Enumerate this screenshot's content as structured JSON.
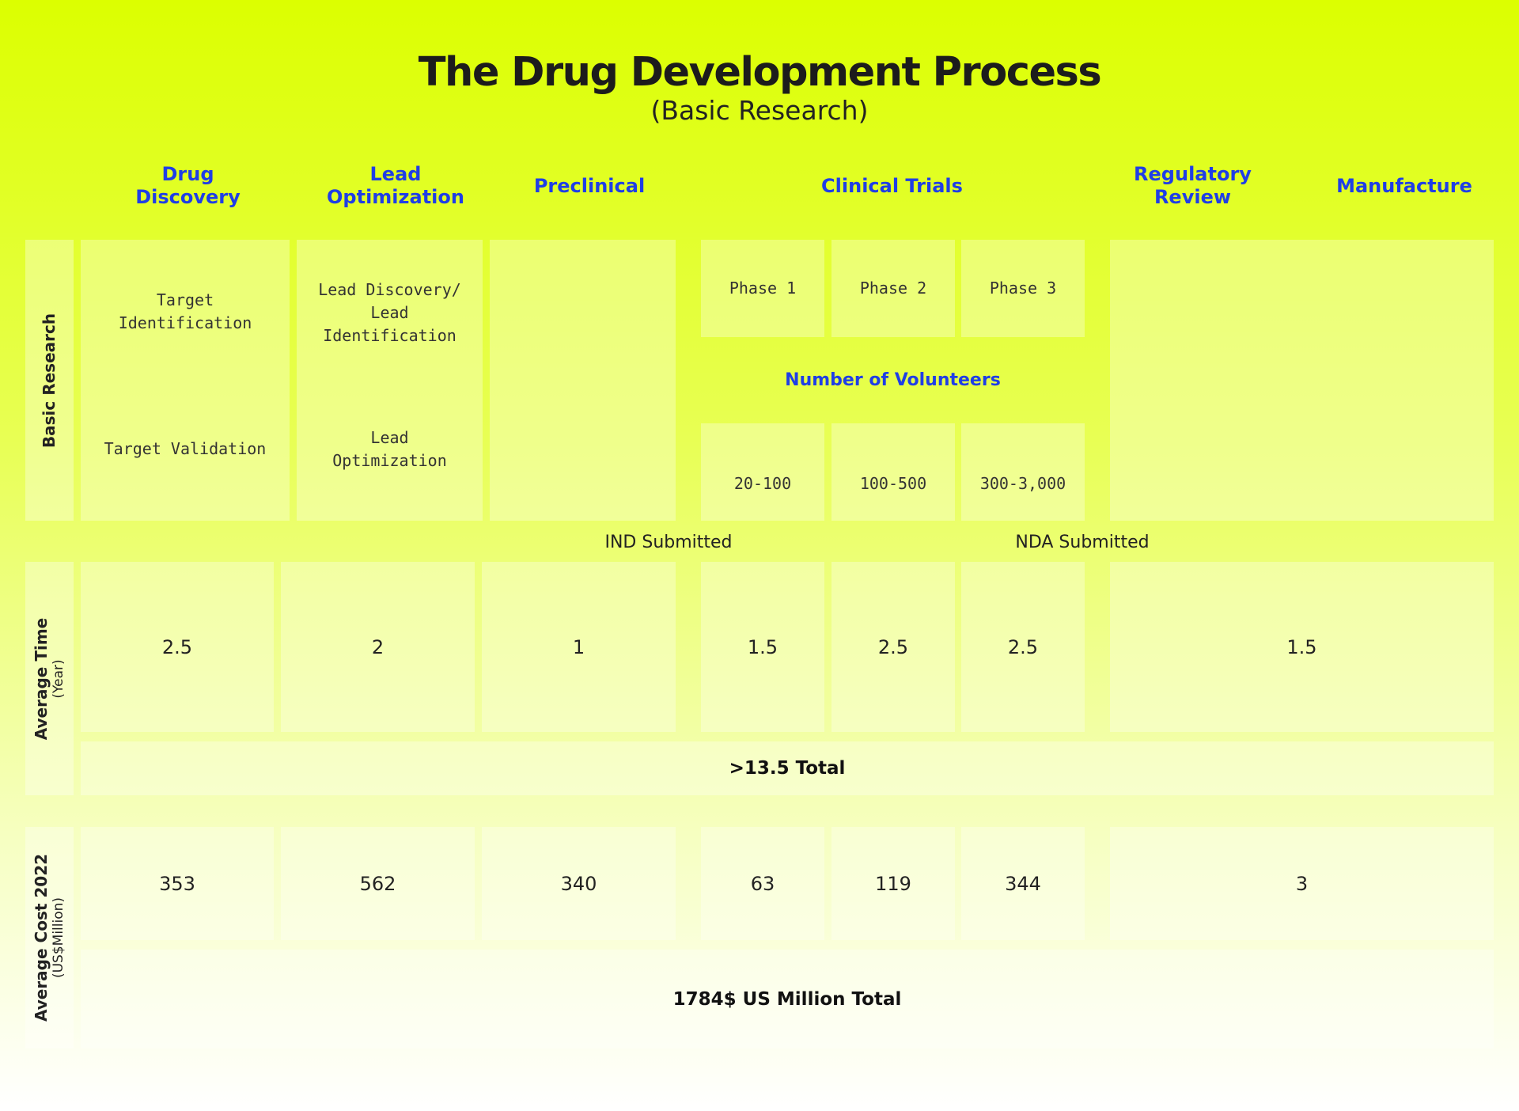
{
  "title": "The Drug Development Process",
  "subtitle": "(Basic Research)",
  "stages": {
    "drug_discovery": "Drug\nDiscovery",
    "lead_optimization": "Lead\nOptimization",
    "preclinical": "Preclinical",
    "clinical_trials": "Clinical Trials",
    "regulatory_review": "Regulatory\nReview",
    "manufacture": "Manufacture"
  },
  "basic_research": {
    "label": "Basic Research",
    "target_identification": "Target\nIdentification",
    "target_validation": "Target Validation",
    "lead_discovery": "Lead Discovery/\nLead\nIdentification",
    "lead_optimization": "Lead\nOptimization",
    "phases": [
      "Phase 1",
      "Phase 2",
      "Phase 3"
    ],
    "volunteers_label": "Number of Volunteers",
    "volunteers": [
      "20-100",
      "100-500",
      "300-3,000"
    ]
  },
  "milestones": {
    "ind": "IND Submitted",
    "nda": "NDA Submitted"
  },
  "average_time": {
    "label": "Average Time",
    "unit": "(Year)",
    "values": [
      "2.5",
      "2",
      "1",
      "1.5",
      "2.5",
      "2.5",
      "1.5"
    ],
    "total": ">13.5 Total"
  },
  "average_cost": {
    "label": "Average Cost 2022",
    "unit": "(US$Million)",
    "values": [
      "353",
      "562",
      "340",
      "63",
      "119",
      "344",
      "3"
    ],
    "total": "1784$ US Million Total"
  },
  "colors": {
    "background_top": "#dcff00",
    "background_bottom": "#ffffff",
    "header_blue": "#1f3ee6"
  }
}
